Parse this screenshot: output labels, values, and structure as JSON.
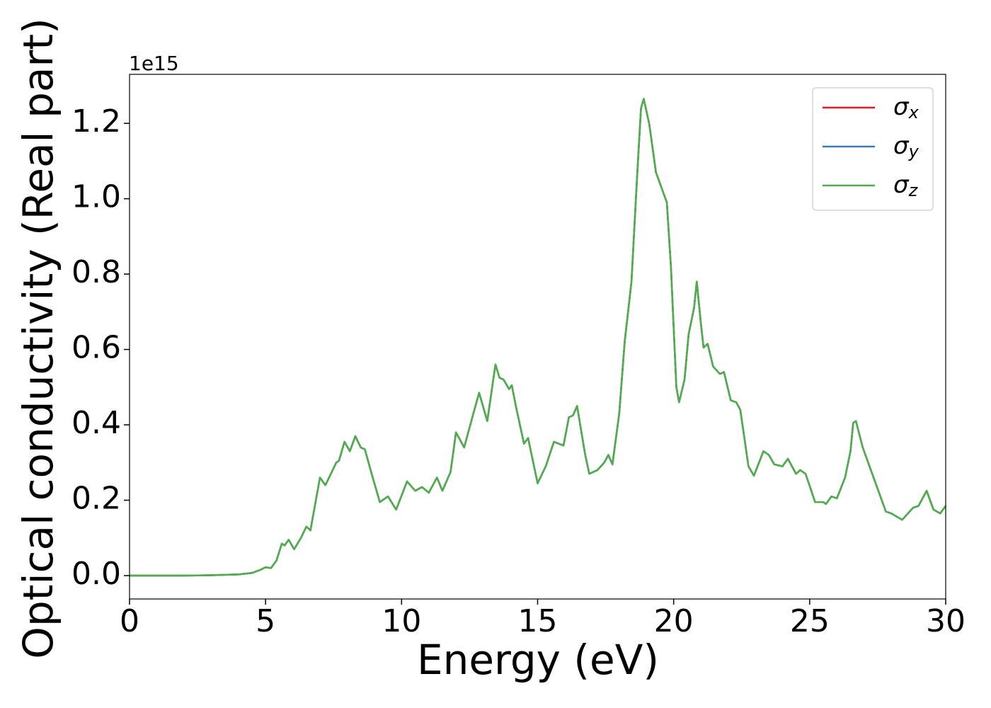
{
  "chart_data": {
    "type": "line",
    "xlabel": "Energy (eV)",
    "ylabel": "Optical conductivity (Real part)",
    "y_offset_label": "1e15",
    "x": [
      0,
      1,
      2,
      3,
      3.5,
      4,
      4.5,
      4.8,
      5.0,
      5.2,
      5.4,
      5.6,
      5.7,
      5.85,
      6.05,
      6.3,
      6.5,
      6.65,
      7.0,
      7.2,
      7.4,
      7.6,
      7.7,
      7.9,
      8.1,
      8.3,
      8.5,
      8.65,
      8.9,
      9.2,
      9.5,
      9.8,
      10.2,
      10.5,
      10.75,
      11.0,
      11.3,
      11.5,
      11.8,
      12.0,
      12.3,
      12.6,
      12.85,
      13.15,
      13.45,
      13.6,
      13.75,
      13.95,
      14.05,
      14.2,
      14.5,
      14.65,
      15.0,
      15.3,
      15.6,
      15.95,
      16.15,
      16.3,
      16.45,
      16.75,
      16.9,
      17.2,
      17.45,
      17.6,
      17.75,
      18.0,
      18.2,
      18.45,
      18.65,
      18.8,
      18.9,
      19.1,
      19.35,
      19.55,
      19.75,
      19.9,
      20.1,
      20.2,
      20.4,
      20.55,
      20.75,
      20.85,
      21.0,
      21.1,
      21.25,
      21.45,
      21.7,
      21.85,
      22.1,
      22.3,
      22.45,
      22.75,
      22.95,
      23.3,
      23.5,
      23.7,
      24.0,
      24.2,
      24.5,
      24.65,
      24.85,
      25.2,
      25.5,
      25.6,
      25.8,
      26.0,
      26.3,
      26.5,
      26.6,
      26.7,
      26.95,
      27.3,
      27.6,
      27.8,
      28.0,
      28.4,
      28.8,
      29.0,
      29.3,
      29.55,
      29.8,
      30
    ],
    "series": [
      {
        "name": "σx",
        "color": "#e41a1c",
        "values": [
          0,
          0,
          0,
          0.001,
          0.002,
          0.003,
          0.007,
          0.015,
          0.022,
          0.02,
          0.04,
          0.085,
          0.08,
          0.095,
          0.07,
          0.1,
          0.13,
          0.12,
          0.26,
          0.24,
          0.27,
          0.3,
          0.305,
          0.355,
          0.33,
          0.37,
          0.34,
          0.335,
          0.27,
          0.195,
          0.21,
          0.175,
          0.25,
          0.225,
          0.235,
          0.22,
          0.26,
          0.225,
          0.275,
          0.38,
          0.34,
          0.42,
          0.485,
          0.41,
          0.56,
          0.525,
          0.52,
          0.495,
          0.505,
          0.45,
          0.35,
          0.365,
          0.245,
          0.29,
          0.355,
          0.345,
          0.42,
          0.425,
          0.45,
          0.32,
          0.27,
          0.28,
          0.3,
          0.32,
          0.295,
          0.43,
          0.62,
          0.78,
          1.05,
          1.24,
          1.265,
          1.2,
          1.07,
          1.03,
          0.99,
          0.82,
          0.5,
          0.46,
          0.52,
          0.64,
          0.71,
          0.78,
          0.67,
          0.605,
          0.615,
          0.555,
          0.535,
          0.54,
          0.465,
          0.46,
          0.44,
          0.29,
          0.265,
          0.33,
          0.32,
          0.295,
          0.29,
          0.31,
          0.27,
          0.28,
          0.27,
          0.195,
          0.195,
          0.19,
          0.21,
          0.205,
          0.26,
          0.33,
          0.405,
          0.41,
          0.34,
          0.27,
          0.21,
          0.17,
          0.165,
          0.148,
          0.18,
          0.185,
          0.225,
          0.175,
          0.165,
          0.185
        ]
      },
      {
        "name": "σy",
        "color": "#377eb8",
        "values": [
          0,
          0,
          0,
          0.001,
          0.002,
          0.003,
          0.007,
          0.015,
          0.022,
          0.02,
          0.04,
          0.085,
          0.08,
          0.095,
          0.07,
          0.1,
          0.13,
          0.12,
          0.26,
          0.24,
          0.27,
          0.3,
          0.305,
          0.355,
          0.33,
          0.37,
          0.34,
          0.335,
          0.27,
          0.195,
          0.21,
          0.175,
          0.25,
          0.225,
          0.235,
          0.22,
          0.26,
          0.225,
          0.275,
          0.38,
          0.34,
          0.42,
          0.485,
          0.41,
          0.56,
          0.525,
          0.52,
          0.495,
          0.505,
          0.45,
          0.35,
          0.365,
          0.245,
          0.29,
          0.355,
          0.345,
          0.42,
          0.425,
          0.45,
          0.32,
          0.27,
          0.28,
          0.3,
          0.32,
          0.295,
          0.43,
          0.62,
          0.78,
          1.05,
          1.24,
          1.265,
          1.2,
          1.07,
          1.03,
          0.99,
          0.82,
          0.5,
          0.46,
          0.52,
          0.64,
          0.71,
          0.78,
          0.67,
          0.605,
          0.615,
          0.555,
          0.535,
          0.54,
          0.465,
          0.46,
          0.44,
          0.29,
          0.265,
          0.33,
          0.32,
          0.295,
          0.29,
          0.31,
          0.27,
          0.28,
          0.27,
          0.195,
          0.195,
          0.19,
          0.21,
          0.205,
          0.26,
          0.33,
          0.405,
          0.41,
          0.34,
          0.27,
          0.21,
          0.17,
          0.165,
          0.148,
          0.18,
          0.185,
          0.225,
          0.175,
          0.165,
          0.185
        ]
      },
      {
        "name": "σz",
        "color": "#4daf4a",
        "values": [
          0,
          0,
          0,
          0.001,
          0.002,
          0.003,
          0.007,
          0.015,
          0.022,
          0.02,
          0.04,
          0.085,
          0.08,
          0.095,
          0.07,
          0.1,
          0.13,
          0.12,
          0.26,
          0.24,
          0.27,
          0.3,
          0.305,
          0.355,
          0.33,
          0.37,
          0.34,
          0.335,
          0.27,
          0.195,
          0.21,
          0.175,
          0.25,
          0.225,
          0.235,
          0.22,
          0.26,
          0.225,
          0.275,
          0.38,
          0.34,
          0.42,
          0.485,
          0.41,
          0.56,
          0.525,
          0.52,
          0.495,
          0.505,
          0.45,
          0.35,
          0.365,
          0.245,
          0.29,
          0.355,
          0.345,
          0.42,
          0.425,
          0.45,
          0.32,
          0.27,
          0.28,
          0.3,
          0.32,
          0.295,
          0.43,
          0.62,
          0.78,
          1.05,
          1.24,
          1.265,
          1.2,
          1.07,
          1.03,
          0.99,
          0.82,
          0.5,
          0.46,
          0.52,
          0.64,
          0.71,
          0.78,
          0.67,
          0.605,
          0.615,
          0.555,
          0.535,
          0.54,
          0.465,
          0.46,
          0.44,
          0.29,
          0.265,
          0.33,
          0.32,
          0.295,
          0.29,
          0.31,
          0.27,
          0.28,
          0.27,
          0.195,
          0.195,
          0.19,
          0.21,
          0.205,
          0.26,
          0.33,
          0.405,
          0.41,
          0.34,
          0.27,
          0.21,
          0.17,
          0.165,
          0.148,
          0.18,
          0.185,
          0.225,
          0.175,
          0.165,
          0.185
        ]
      }
    ],
    "xlim": [
      0,
      30
    ],
    "xticks": [
      0,
      5,
      10,
      15,
      20,
      25,
      30
    ],
    "ylim": [
      -0.062,
      1.33
    ],
    "yticks": [
      {
        "value": 0,
        "label": "0.0"
      },
      0.2,
      0.4,
      0.6,
      0.8,
      {
        "value": 1,
        "label": "1.0"
      },
      1.2
    ],
    "legend": "upper right",
    "grid": false
  }
}
